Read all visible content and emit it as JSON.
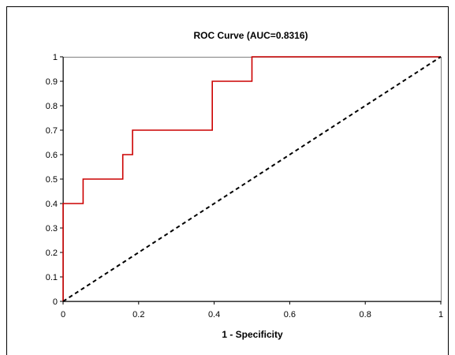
{
  "chart_data": {
    "type": "line",
    "title": "ROC Curve (AUC=0.8316)",
    "xlabel": "1 - Specificity",
    "ylabel": "",
    "xlim": [
      0,
      1
    ],
    "ylim": [
      0,
      1
    ],
    "x_ticks": [
      "0",
      "0.2",
      "0.4",
      "0.6",
      "0.8",
      "1"
    ],
    "y_ticks": [
      "0",
      "0.1",
      "0.2",
      "0.3",
      "0.4",
      "0.5",
      "0.6",
      "0.7",
      "0.8",
      "0.9",
      "1"
    ],
    "grid": false,
    "legend": "none",
    "series": [
      {
        "style": "step",
        "color": "#cc0000",
        "points": [
          [
            0,
            0
          ],
          [
            0,
            0.4
          ],
          [
            0.053,
            0.4
          ],
          [
            0.053,
            0.5
          ],
          [
            0.158,
            0.5
          ],
          [
            0.158,
            0.6
          ],
          [
            0.184,
            0.6
          ],
          [
            0.184,
            0.7
          ],
          [
            0.395,
            0.7
          ],
          [
            0.395,
            0.9
          ],
          [
            0.5,
            0.9
          ],
          [
            0.5,
            1.0
          ],
          [
            1.0,
            1.0
          ]
        ]
      },
      {
        "style": "dashed",
        "color": "#000000",
        "points": [
          [
            0,
            0
          ],
          [
            1,
            1
          ]
        ]
      }
    ]
  }
}
